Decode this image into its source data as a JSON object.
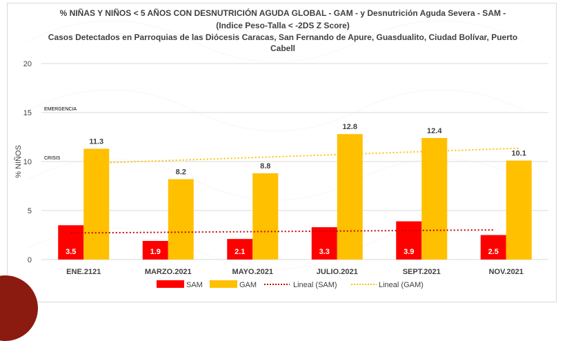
{
  "title_lines": [
    "% NIÑAS Y NIÑOS < 5 AÑOS CON DESNUTRICIÓN AGUDA GLOBAL - GAM - y Desnutrición Aguda Severa - SAM -",
    "(Indice Peso-Talla  < -2DS Z Score)",
    "Casos Detectados en Parroquias de las Diócesis Caracas, San Fernando de Apure, Guasdualito, Ciudad Bolívar, Puerto",
    "Cabell"
  ],
  "colors": {
    "sam": "#ff0000",
    "gam": "#ffc000",
    "lineal_sam": "#c00000",
    "lineal_gam": "#ffc000",
    "grid": "#d9d9d9",
    "text": "#404040",
    "corner": "#8b1a10"
  },
  "chart_data": {
    "type": "bar",
    "categories": [
      "ENE.2121",
      "MARZO.2021",
      "MAYO.2021",
      "JULIO.2021",
      "SEPT.2021",
      "NOV.2021"
    ],
    "series": [
      {
        "name": "SAM",
        "values": [
          3.5,
          1.9,
          2.1,
          3.3,
          3.9,
          2.5
        ]
      },
      {
        "name": "GAM",
        "values": [
          11.3,
          8.2,
          8.8,
          12.8,
          12.4,
          10.1
        ]
      }
    ],
    "trendlines": [
      {
        "name": "Lineal (SAM)",
        "of": "SAM",
        "style": "dotted"
      },
      {
        "name": "Lineal (GAM)",
        "of": "GAM",
        "style": "dotted"
      }
    ],
    "ylabel": "% NIÑOS",
    "ylim": [
      0,
      20
    ],
    "yticks": [
      0,
      5,
      10,
      15,
      20
    ],
    "annotations": [
      {
        "text": "EMERGENCIA",
        "y": 15
      },
      {
        "text": "CRISIS",
        "y": 10
      }
    ],
    "grid": true,
    "legend": "bottom"
  }
}
